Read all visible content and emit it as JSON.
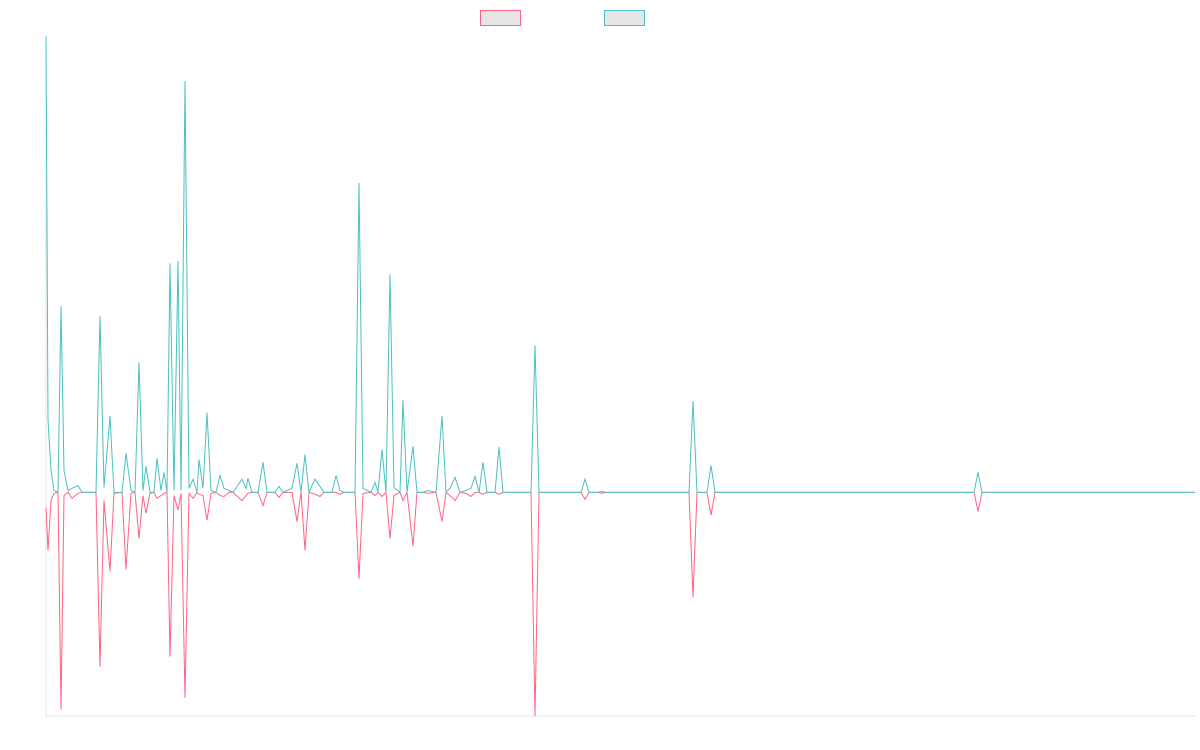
{
  "chart_data": {
    "type": "line",
    "x": [
      0,
      2,
      5,
      8,
      12,
      15,
      18,
      22,
      26,
      32,
      36,
      50,
      54,
      58,
      64,
      68,
      76,
      80,
      85,
      89,
      93,
      97,
      100,
      104,
      108,
      111,
      115,
      118,
      121,
      124,
      128,
      132,
      135,
      139,
      143,
      147,
      151,
      153,
      157,
      161,
      165,
      170,
      174,
      178,
      183,
      187,
      196,
      200,
      202,
      206,
      212,
      217,
      221,
      229,
      233,
      237,
      246,
      251,
      255,
      259,
      263,
      269,
      274,
      278,
      286,
      290,
      294,
      298,
      309,
      313,
      317,
      325,
      329,
      332,
      336,
      340,
      344,
      348,
      354,
      357,
      361,
      367,
      371,
      377,
      382,
      390,
      396,
      400,
      404,
      409,
      414,
      420,
      425,
      429,
      433,
      437,
      441,
      449,
      453,
      457,
      485,
      489,
      493,
      535,
      539,
      543,
      552,
      556,
      560,
      643,
      647,
      651,
      661,
      665,
      669,
      928,
      932,
      936,
      1149
    ],
    "series": [
      {
        "color": "#ff6384",
        "values": [
          -3.3,
          -12.7,
          -1.8,
          -0.2,
          0,
          -47.6,
          -0.7,
          0,
          -1.3,
          -0.2,
          0,
          0,
          -38.2,
          -1.8,
          -17.3,
          -0.2,
          0,
          -16.9,
          -0.2,
          0,
          -10.1,
          -0.7,
          -4.6,
          -0.2,
          0,
          -1.3,
          -0.7,
          -0.2,
          0,
          -36,
          -0.7,
          -3.9,
          -0.2,
          -45,
          -0.2,
          -1.3,
          0,
          -0.4,
          -0.7,
          -6.1,
          -0.2,
          0,
          -0.7,
          -0.9,
          0,
          0,
          -1.8,
          -0.7,
          -0.2,
          0,
          0,
          -2.9,
          0,
          0,
          -1.1,
          0,
          0,
          -6.4,
          0,
          -12.7,
          0,
          -0.4,
          -0.9,
          0,
          0,
          0,
          -0.4,
          0,
          0,
          -18.9,
          -0.2,
          0,
          -0.7,
          0,
          -0.9,
          0,
          -10.1,
          -0.7,
          0,
          -1.8,
          0,
          -11.8,
          0,
          0,
          -0.2,
          0,
          -6.4,
          0,
          -0.7,
          -1.8,
          0,
          -0.2,
          -0.9,
          0,
          0,
          -0.4,
          0,
          0,
          -0.4,
          0,
          0,
          -49,
          0,
          0,
          -1.5,
          0,
          0,
          -0.2,
          0,
          0,
          -23,
          0,
          0,
          -5,
          0,
          0,
          -4.2,
          0,
          0
        ]
      },
      {
        "color": "#4bc0c0",
        "values": [
          100,
          15.8,
          4.8,
          0.4,
          0,
          40.8,
          4.8,
          0.4,
          0.9,
          1.5,
          0,
          0,
          38.6,
          1.1,
          16.7,
          0,
          0,
          8.6,
          0.4,
          0,
          28.5,
          0.4,
          5.7,
          0,
          0,
          7.5,
          0.4,
          4.4,
          0,
          50.2,
          0.4,
          50.7,
          0.4,
          90.1,
          0.9,
          2.9,
          0,
          7.2,
          0.9,
          17.5,
          0.4,
          0,
          3.7,
          0.9,
          0.4,
          0,
          2.9,
          0.9,
          3.1,
          0,
          0,
          6.6,
          0,
          0,
          1.3,
          0,
          0.9,
          6.4,
          0,
          8.3,
          0,
          2.9,
          1.3,
          0,
          0,
          3.7,
          0.4,
          0,
          0,
          67.8,
          0.9,
          0,
          2.2,
          0,
          9.4,
          0,
          47.8,
          1.1,
          0,
          20.2,
          0,
          10.1,
          0,
          0,
          0.4,
          0,
          16.7,
          0,
          0.9,
          3.3,
          0,
          0.4,
          0.9,
          3.5,
          0,
          6.6,
          0,
          0,
          9.9,
          0,
          0,
          32.2,
          0,
          0,
          2.9,
          0,
          0,
          0.2,
          0,
          0,
          20,
          0,
          0,
          5.9,
          0,
          0,
          4.4,
          0,
          0
        ]
      }
    ],
    "xlim": [
      0,
      1149
    ],
    "ylim": [
      -49,
      100
    ]
  }
}
